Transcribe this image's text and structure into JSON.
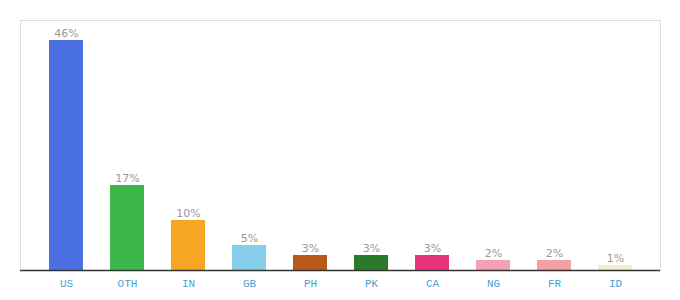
{
  "chart_data": {
    "type": "bar",
    "categories": [
      "US",
      "OTH",
      "IN",
      "GB",
      "PH",
      "PK",
      "CA",
      "NG",
      "FR",
      "ID"
    ],
    "values": [
      46,
      17,
      10,
      5,
      3,
      3,
      3,
      2,
      2,
      1
    ],
    "value_labels": [
      "46%",
      "17%",
      "10%",
      "5%",
      "3%",
      "3%",
      "3%",
      "2%",
      "2%",
      "1%"
    ],
    "colors": [
      "#4a6fe3",
      "#3cb84a",
      "#f5a623",
      "#87ceeb",
      "#b8591a",
      "#2a7a2a",
      "#e8327d",
      "#f4a0b5",
      "#f4a0a0",
      "#f0eecc"
    ],
    "ylim": [
      0,
      50
    ],
    "data_labels": true,
    "tick_labels": "x"
  }
}
